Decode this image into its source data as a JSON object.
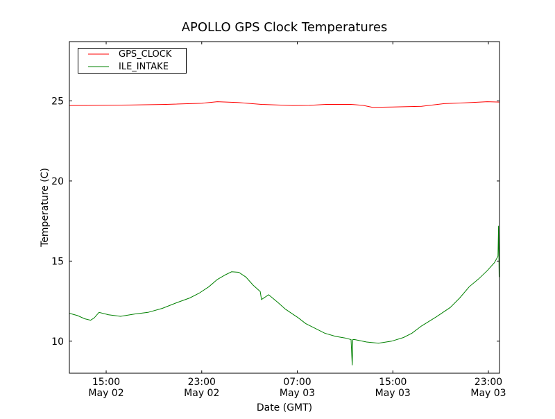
{
  "chart_data": {
    "type": "line",
    "title": "APOLLO GPS Clock Temperatures",
    "xlabel": "Date (GMT)",
    "ylabel": "Temperature (C)",
    "x_units": "hours since May 02 00:00 GMT",
    "xlim": [
      11.92,
      47.93
    ],
    "ylim": [
      8.0,
      28.7
    ],
    "grid": false,
    "legend_position": "top-left",
    "x_ticks": [
      {
        "value": 15,
        "time": "15:00",
        "date": "May 02"
      },
      {
        "value": 23,
        "time": "23:00",
        "date": "May 02"
      },
      {
        "value": 31,
        "time": "07:00",
        "date": "May 03"
      },
      {
        "value": 39,
        "time": "15:00",
        "date": "May 03"
      },
      {
        "value": 47,
        "time": "23:00",
        "date": "May 03"
      }
    ],
    "y_ticks": [
      10,
      15,
      20,
      25
    ],
    "series": [
      {
        "name": "GPS_CLOCK",
        "color": "#ff0000",
        "x": [
          11.92,
          14,
          17,
          20,
          23,
          24.3,
          26,
          28,
          30.6,
          32,
          33.4,
          35.5,
          36.5,
          37.3,
          39,
          41.4,
          43.3,
          45,
          46.9,
          47.93
        ],
        "y": [
          24.71,
          24.72,
          24.74,
          24.78,
          24.85,
          24.95,
          24.9,
          24.78,
          24.71,
          24.72,
          24.78,
          24.78,
          24.72,
          24.6,
          24.62,
          24.66,
          24.83,
          24.88,
          24.95,
          24.93
        ]
      },
      {
        "name": "ILE_INTAKE",
        "color": "#008000",
        "x": [
          11.92,
          12.6,
          13.2,
          13.7,
          14.0,
          14.4,
          15.2,
          16.2,
          17.4,
          18.5,
          19.7,
          20.9,
          22.0,
          22.8,
          23.6,
          24.3,
          25.0,
          25.5,
          26.1,
          26.7,
          27.3,
          27.9,
          28.0,
          28.6,
          29.4,
          30.0,
          30.6,
          31.1,
          31.7,
          32.5,
          33.3,
          34.2,
          35.0,
          35.5,
          35.6,
          35.65,
          35.8,
          36.8,
          37.8,
          38.9,
          39.9,
          40.6,
          41.4,
          42.6,
          43.8,
          44.6,
          45.4,
          46.2,
          46.9,
          47.5,
          47.8,
          47.85,
          47.9,
          47.93
        ],
        "y": [
          11.74,
          11.6,
          11.4,
          11.31,
          11.45,
          11.8,
          11.65,
          11.55,
          11.7,
          11.8,
          12.05,
          12.4,
          12.7,
          13.0,
          13.4,
          13.85,
          14.15,
          14.33,
          14.3,
          14.0,
          13.5,
          13.1,
          12.6,
          12.9,
          12.4,
          12.0,
          11.7,
          11.45,
          11.1,
          10.8,
          10.5,
          10.3,
          10.2,
          10.1,
          8.5,
          10.1,
          10.1,
          9.95,
          9.87,
          10.0,
          10.23,
          10.5,
          10.95,
          11.5,
          12.1,
          12.7,
          13.4,
          13.9,
          14.4,
          14.9,
          15.3,
          17.2,
          14.0,
          15.2
        ]
      }
    ]
  }
}
